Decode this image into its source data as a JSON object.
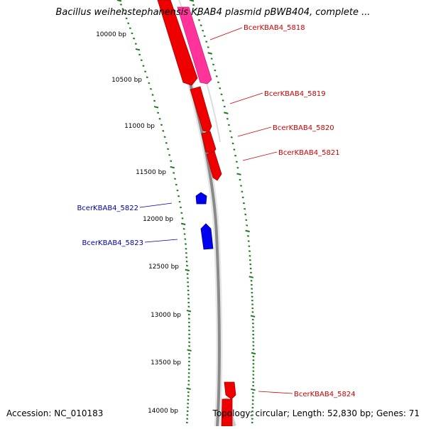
{
  "title": "Bacillus weihenstephanensis KBAB4 plasmid pBWB404, complete ...",
  "accession_text": "Accession: NC_010183",
  "summary_text": "Topology: circular; Length: 52,830 bp; Genes: 71",
  "colors": {
    "forward_gene": "#ff0000",
    "forward_gene_highlight": "#ff3399",
    "reverse_gene": "#0000ff",
    "forward_label": "#cc0000",
    "reverse_label": "#0000aa",
    "tick": "#1a7a1a",
    "backbone": "#888888"
  },
  "scale_labels": [
    "10000 bp",
    "10500 bp",
    "11000 bp",
    "11500 bp",
    "12000 bp",
    "12500 bp",
    "13000 bp",
    "13500 bp",
    "14000 bp"
  ],
  "forward_gene_labels": [
    "BcerKBAB4_5818",
    "BcerKBAB4_5819",
    "BcerKBAB4_5820",
    "BcerKBAB4_5821",
    "BcerKBAB4_5824"
  ],
  "reverse_gene_labels": [
    "BcerKBAB4_5822",
    "BcerKBAB4_5823"
  ]
}
